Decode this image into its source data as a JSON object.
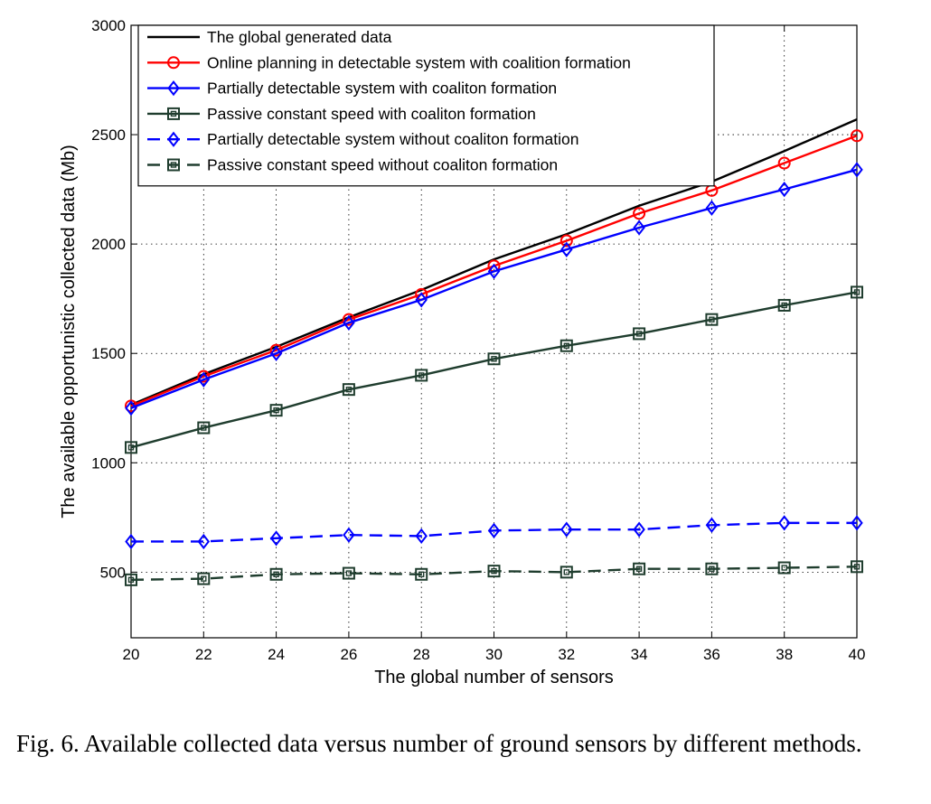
{
  "chart_data": {
    "type": "line",
    "xlabel": "The global number of sensors",
    "ylabel": "The available opportunistic collected data (Mb)",
    "x": [
      20,
      22,
      24,
      26,
      28,
      30,
      32,
      34,
      36,
      38,
      40
    ],
    "xlim": [
      20,
      40
    ],
    "ylim": [
      200,
      3000
    ],
    "xticks": [
      "20",
      "22",
      "24",
      "26",
      "28",
      "30",
      "32",
      "34",
      "36",
      "38",
      "40"
    ],
    "yticks": [
      "500",
      "1000",
      "1500",
      "2000",
      "2500",
      "3000"
    ],
    "grid": true,
    "legend_position": "top-left",
    "series": [
      {
        "name": "The global generated data",
        "color": "#000000",
        "dash": "solid",
        "marker": "none",
        "values": [
          1265,
          1405,
          1530,
          1665,
          1790,
          1930,
          2045,
          2175,
          2285,
          2425,
          2570
        ]
      },
      {
        "name": "Online planning in detectable system with coalition formation",
        "color": "#ff0000",
        "dash": "solid",
        "marker": "circle",
        "values": [
          1260,
          1395,
          1515,
          1655,
          1770,
          1900,
          2015,
          2140,
          2245,
          2370,
          2495
        ]
      },
      {
        "name": "Partially detectable system with coaliton formation",
        "color": "#0000ff",
        "dash": "solid",
        "marker": "diamond",
        "values": [
          1250,
          1380,
          1500,
          1640,
          1745,
          1875,
          1975,
          2075,
          2165,
          2250,
          2340
        ]
      },
      {
        "name": "Passive constant speed with coaliton formation",
        "color": "#1f3d2e",
        "dash": "solid",
        "marker": "square",
        "values": [
          1070,
          1160,
          1240,
          1335,
          1400,
          1475,
          1535,
          1590,
          1655,
          1720,
          1780
        ]
      },
      {
        "name": "Partially detectable system without coaliton formation",
        "color": "#0000ff",
        "dash": "dashed",
        "marker": "diamond",
        "values": [
          640,
          640,
          655,
          670,
          665,
          690,
          695,
          695,
          715,
          725,
          725
        ]
      },
      {
        "name": "Passive constant speed without coaliton formation",
        "color": "#1f3d2e",
        "dash": "dashed",
        "marker": "square",
        "values": [
          465,
          470,
          490,
          495,
          490,
          505,
          500,
          515,
          515,
          520,
          525
        ]
      }
    ]
  },
  "caption": {
    "text": "Fig. 6.   Available collected data versus number of ground sensors by different methods."
  }
}
